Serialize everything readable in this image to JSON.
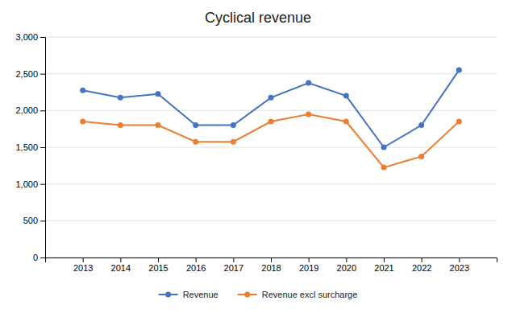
{
  "chart_data": {
    "type": "line",
    "title": "Cyclical revenue",
    "x": [
      2013,
      2014,
      2015,
      2016,
      2017,
      2018,
      2019,
      2020,
      2021,
      2022,
      2023
    ],
    "series": [
      {
        "name": "Revenue",
        "color": "#4472C4",
        "marker": "circle",
        "values": [
          2275,
          2175,
          2225,
          1800,
          1800,
          2175,
          2375,
          2200,
          1500,
          1800,
          2550
        ]
      },
      {
        "name": "Revenue excl surcharge",
        "color": "#ED7D31",
        "marker": "circle",
        "values": [
          1850,
          1800,
          1800,
          1575,
          1575,
          1850,
          1950,
          1850,
          1225,
          1375,
          1850
        ]
      }
    ],
    "xlim": [
      2012,
      2024
    ],
    "xticks": [
      2013,
      2014,
      2015,
      2016,
      2017,
      2018,
      2019,
      2020,
      2021,
      2022,
      2023
    ],
    "ylim": [
      0,
      3000
    ],
    "yticks": [
      0,
      500,
      {
        "value": 1000,
        "label": "1,000"
      },
      {
        "value": 1500,
        "label": "1,500"
      },
      {
        "value": 2000,
        "label": "2,000"
      },
      {
        "value": 2500,
        "label": "2,500"
      },
      {
        "value": 3000,
        "label": "3,000"
      }
    ],
    "grid": true,
    "legend": "bottom"
  }
}
